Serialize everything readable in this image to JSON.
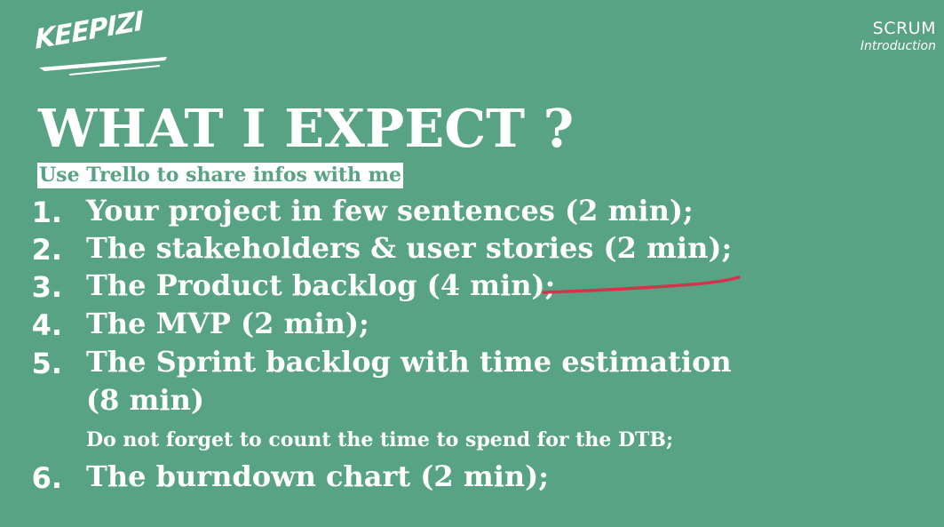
{
  "logo": {
    "text": "KEEPIZI"
  },
  "header": {
    "title": "SCRUM",
    "subtitle": "Introduction"
  },
  "main": {
    "heading": "WHAT I EXPECT ?",
    "highlight": "Use Trello to share infos with me",
    "items": [
      {
        "number": "1.",
        "text": "Your project in few sentences (2 min);"
      },
      {
        "number": "2.",
        "text": "The stakeholders & user stories (2 min);"
      },
      {
        "number": "3.",
        "text": "The Product backlog (4 min);"
      },
      {
        "number": "4.",
        "text": "The MVP (2 min);"
      },
      {
        "number": "5.",
        "text": "The Sprint backlog with time estimation",
        "text_line2": "(8 min)"
      },
      {
        "number": "6.",
        "text": "The burndown chart (2 min);"
      }
    ],
    "note": "Do not forget to count the time to spend for the DTB;"
  },
  "colors": {
    "background": "#57a383",
    "text": "#ffffff",
    "pen_mark": "#d6324b"
  }
}
